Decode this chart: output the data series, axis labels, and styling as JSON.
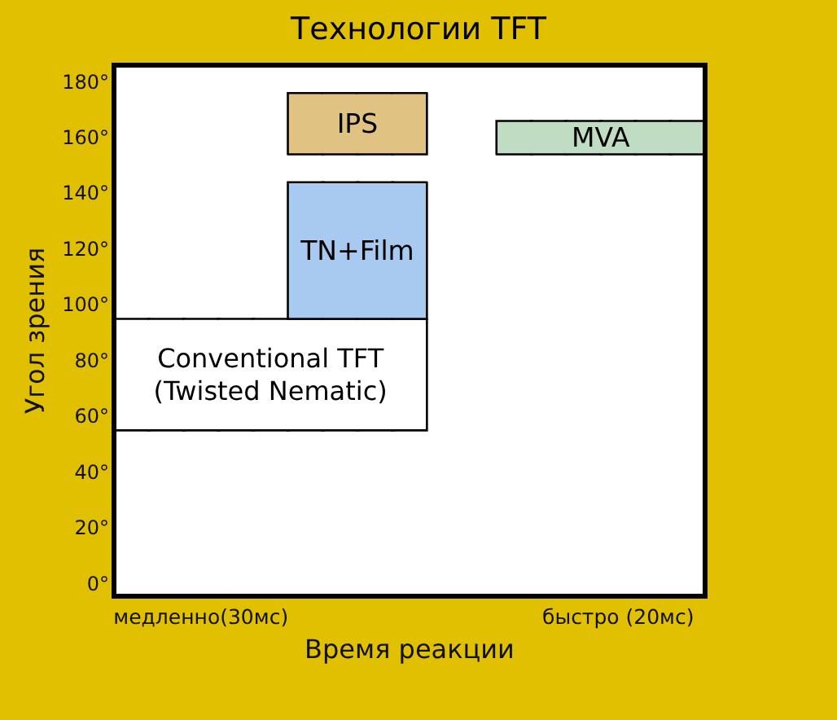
{
  "chart_data": {
    "type": "bar",
    "title": "Технологии TFT",
    "xlabel": "Время реакции",
    "ylabel": "Угол зрения",
    "categories": [
      null,
      null,
      "медленно(30мс)",
      null,
      null,
      null,
      null,
      null,
      null,
      null,
      null,
      null,
      null,
      null,
      "быстро (20мс)",
      null,
      null
    ],
    "ylim": [
      -4.5,
      186
    ],
    "yticks": [
      {
        "value": 0,
        "label": "0°"
      },
      {
        "value": 20,
        "label": "20°"
      },
      {
        "value": 40,
        "label": "40°"
      },
      {
        "value": 60,
        "label": "60°"
      },
      {
        "value": 80,
        "label": "80°"
      },
      {
        "value": 100,
        "label": "100°"
      },
      {
        "value": 120,
        "label": "120°"
      },
      {
        "value": 140,
        "label": "140°"
      },
      {
        "value": 160,
        "label": "160°"
      },
      {
        "value": 180,
        "label": "180°"
      }
    ],
    "series": [
      {
        "name": "Conventional TFT\n(Twisted Nematic)",
        "color": "#ffffff",
        "base": [
          55,
          55,
          55,
          55,
          55,
          55,
          55,
          55,
          55,
          null,
          null,
          null,
          null,
          null,
          null,
          null,
          null
        ],
        "values": [
          40,
          40,
          40,
          40,
          40,
          40,
          40,
          40,
          40,
          null,
          null,
          null,
          null,
          null,
          null,
          null,
          null
        ]
      },
      {
        "name": "TN+Film",
        "color": "#a8caf0",
        "base": [
          null,
          null,
          null,
          null,
          null,
          95,
          95,
          95,
          95,
          null,
          null,
          null,
          null,
          null,
          null,
          null,
          null
        ],
        "values": [
          null,
          null,
          null,
          null,
          null,
          49,
          49,
          49,
          49,
          null,
          null,
          null,
          null,
          null,
          null,
          null,
          null
        ]
      },
      {
        "name": "IPS",
        "color": "#e0c282",
        "base": [
          null,
          null,
          null,
          null,
          null,
          154,
          154,
          154,
          154,
          null,
          null,
          null,
          null,
          null,
          null,
          null,
          null
        ],
        "values": [
          null,
          null,
          null,
          null,
          null,
          22,
          22,
          22,
          22,
          null,
          null,
          null,
          null,
          null,
          null,
          null,
          null
        ]
      },
      {
        "name": "MVA",
        "color": "#c0dcc2",
        "base": [
          null,
          null,
          null,
          null,
          null,
          null,
          null,
          null,
          null,
          null,
          null,
          154,
          154,
          154,
          154,
          154,
          154
        ],
        "values": [
          null,
          null,
          null,
          null,
          null,
          null,
          null,
          null,
          null,
          null,
          null,
          12,
          12,
          12,
          12,
          12,
          12
        ]
      }
    ]
  }
}
